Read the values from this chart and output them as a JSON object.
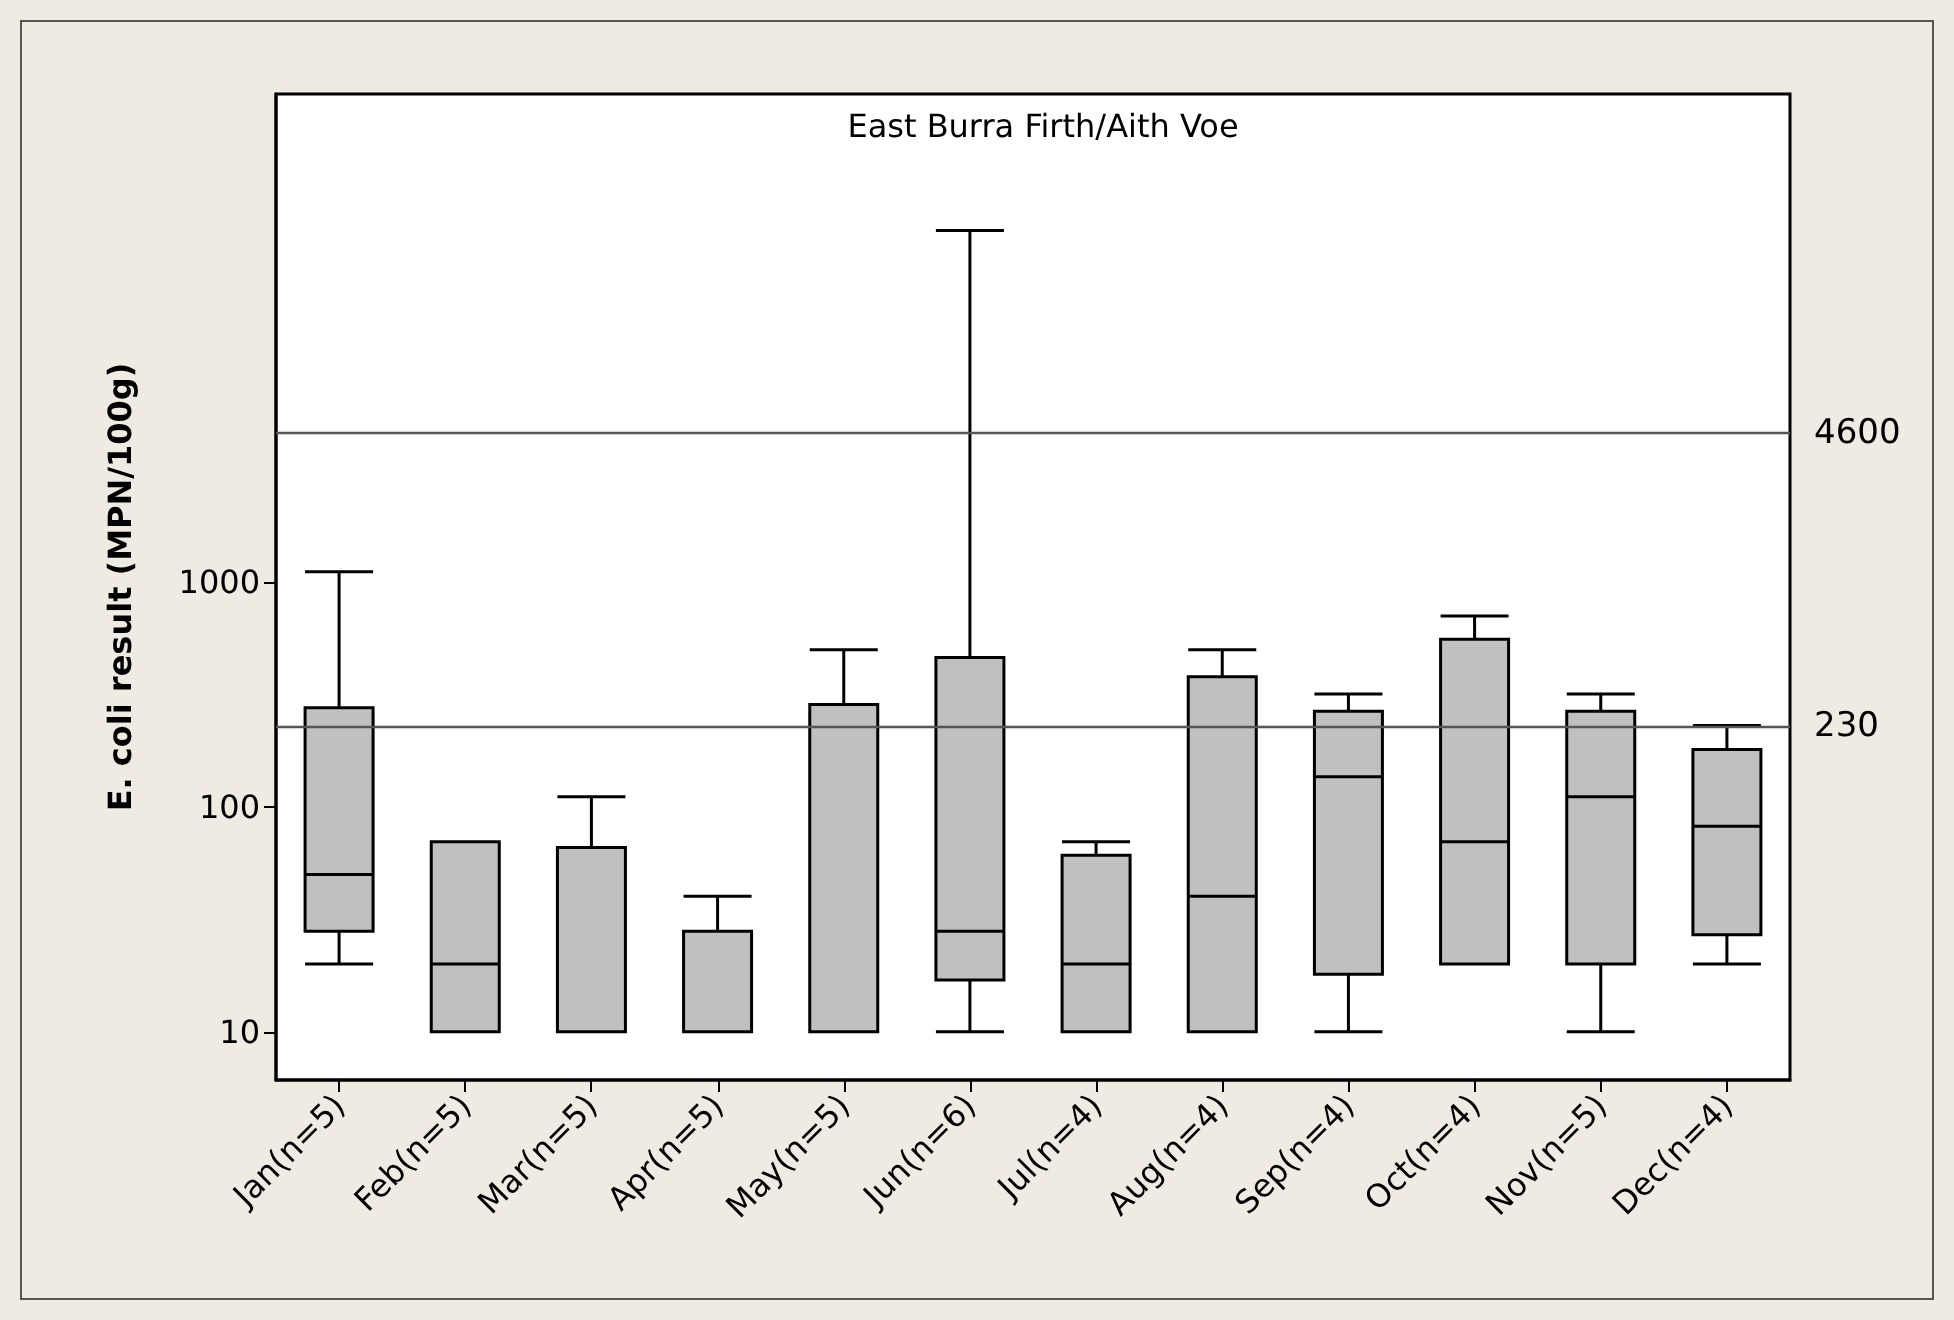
{
  "chart_data": {
    "type": "box",
    "title": "East Burra Firth/Aith Voe",
    "ylabel": "E. coli result (MPN/100g)",
    "categories": [
      "Jan(n=5)",
      "Feb(n=5)",
      "Mar(n=5)",
      "Apr(n=5)",
      "May(n=5)",
      "Jun(n=6)",
      "Jul(n=4)",
      "Aug(n=4)",
      "Sep(n=4)",
      "Oct(n=4)",
      "Nov(n=5)",
      "Dec(n=4)"
    ],
    "boxes": [
      {
        "low": 20,
        "q1": 28,
        "median": 50,
        "q3": 276,
        "high": 1110
      },
      {
        "low": 10,
        "q1": 10,
        "median": 20,
        "q3": 70,
        "high": 70
      },
      {
        "low": 10,
        "q1": 10,
        "median": 10,
        "q3": 66,
        "high": 111
      },
      {
        "low": 10,
        "q1": 10,
        "median": 10,
        "q3": 28,
        "high": 40
      },
      {
        "low": 10,
        "q1": 10,
        "median": 10,
        "q3": 285,
        "high": 500
      },
      {
        "low": 10,
        "q1": 17,
        "median": 28,
        "q3": 462,
        "high": 36600
      },
      {
        "low": 10,
        "q1": 10,
        "median": 20,
        "q3": 61,
        "high": 70
      },
      {
        "low": 10,
        "q1": 10,
        "median": 40,
        "q3": 379,
        "high": 500
      },
      {
        "low": 10,
        "q1": 18,
        "median": 136,
        "q3": 266,
        "high": 318
      },
      {
        "low": 20,
        "q1": 20,
        "median": 70,
        "q3": 556,
        "high": 706
      },
      {
        "low": 10,
        "q1": 20,
        "median": 111,
        "q3": 266,
        "high": 318
      },
      {
        "low": 20,
        "q1": 27,
        "median": 82,
        "q3": 180,
        "high": 230
      }
    ],
    "color": "#c0c0c0",
    "log": true,
    "ylim": [
      6.1,
      148000
    ],
    "yticks": [
      10,
      100,
      1000
    ],
    "grid": false,
    "ref_lines": [
      {
        "axis": "y",
        "value": 4600,
        "label": "4600"
      },
      {
        "axis": "y",
        "value": 230,
        "label": "230"
      }
    ]
  }
}
